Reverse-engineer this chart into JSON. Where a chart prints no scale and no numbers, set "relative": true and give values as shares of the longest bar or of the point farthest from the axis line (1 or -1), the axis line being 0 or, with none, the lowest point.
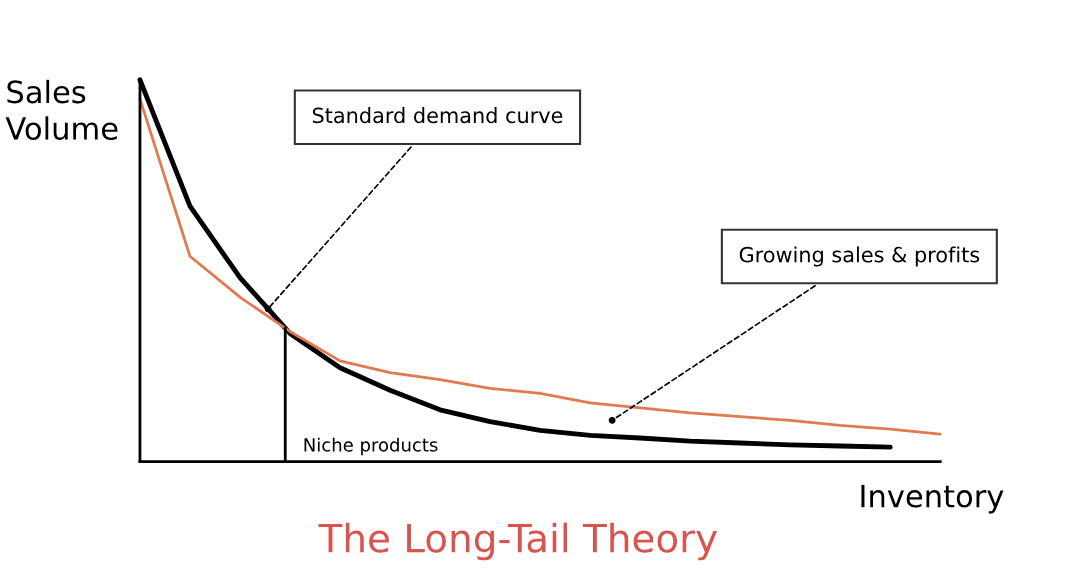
{
  "chart_data": {
    "type": "line",
    "title": "The Long-Tail Theory",
    "xlabel": "Inventory",
    "ylabel": "Sales\nVolume",
    "relative": true,
    "legend": false,
    "marker": "none",
    "line_style": "solid",
    "categories": [
      null,
      null,
      null,
      null,
      null,
      null,
      null,
      null,
      null,
      null,
      null,
      null,
      null,
      null,
      null,
      null,
      null
    ],
    "series": [
      {
        "color": "#000000",
        "values": [
          1.0,
          0.669,
          0.482,
          0.336,
          0.246,
          0.187,
          0.136,
          0.105,
          0.082,
          0.069,
          0.062,
          0.054,
          0.049,
          0.044,
          0.041,
          0.038,
          null
        ]
      },
      {
        "color": "#e07b4f",
        "values": [
          0.95,
          0.538,
          0.431,
          0.341,
          0.264,
          0.233,
          0.215,
          0.192,
          0.179,
          0.154,
          0.141,
          0.128,
          0.118,
          0.108,
          0.095,
          0.085,
          0.072
        ]
      }
    ],
    "ref_lines": [
      {
        "axis": "x",
        "label": "Niche products",
        "color": "#000000",
        "line_style": "solid"
      }
    ],
    "annotations": [
      "Standard demand curve",
      "Growing sales & profits"
    ]
  }
}
